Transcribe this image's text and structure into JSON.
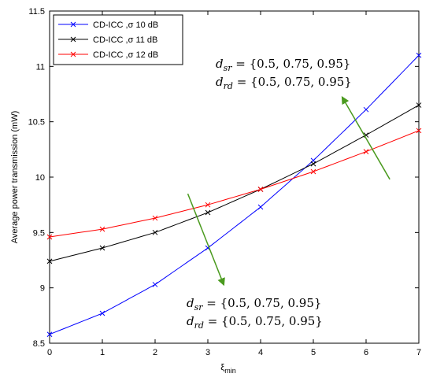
{
  "chart_data": {
    "type": "line",
    "xlabel": "ξ",
    "xlabel_sub": "min",
    "ylabel": "Average power transmission (mW)",
    "xlim": [
      0,
      7
    ],
    "ylim": [
      8.5,
      11.5
    ],
    "xticks": [
      "0",
      "1",
      "2",
      "3",
      "4",
      "5",
      "6",
      "7"
    ],
    "yticks": [
      "8.5",
      "9",
      "9.5",
      "10",
      "10.5",
      "11",
      "11.5"
    ],
    "x": [
      0,
      1,
      2,
      3,
      4,
      5,
      6,
      7
    ],
    "series": [
      {
        "name": "CD-ICC ,σ 10 dB",
        "color": "#0000ff",
        "values": [
          8.58,
          8.77,
          9.03,
          9.36,
          9.73,
          10.15,
          10.61,
          11.1
        ]
      },
      {
        "name": "CD-ICC ,σ 11 dB",
        "color": "#000000",
        "values": [
          9.24,
          9.36,
          9.5,
          9.68,
          9.89,
          10.12,
          10.38,
          10.65
        ]
      },
      {
        "name": "CD-ICC ,σ 12 dB",
        "color": "#ff0000",
        "values": [
          9.46,
          9.53,
          9.63,
          9.75,
          9.89,
          10.05,
          10.23,
          10.42
        ]
      }
    ],
    "legend_position": "top-left",
    "grid": false,
    "annotations": [
      {
        "lines": [
          {
            "var": "d",
            "sub": "sr",
            "text": " = {0.5, 0.75, 0.95}"
          },
          {
            "var": "d",
            "sub": "rd",
            "text": " = {0.5, 0.75, 0.95}"
          }
        ],
        "arrow": {
          "from": [
            6.45,
            9.98
          ],
          "to": [
            5.55,
            10.72
          ],
          "color": "#4a9a1e"
        }
      },
      {
        "lines": [
          {
            "var": "d",
            "sub": "sr",
            "text": " = {0.5, 0.75, 0.95}"
          },
          {
            "var": "d",
            "sub": "rd",
            "text": " = {0.5, 0.75, 0.95}"
          }
        ],
        "arrow": {
          "from": [
            2.62,
            9.85
          ],
          "to": [
            3.3,
            9.03
          ],
          "color": "#4a9a1e"
        }
      }
    ]
  }
}
